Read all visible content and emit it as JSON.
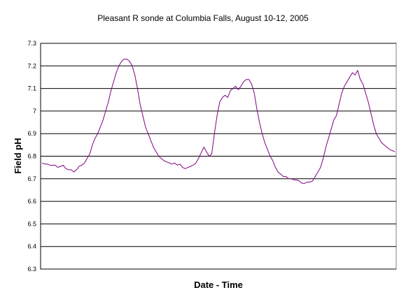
{
  "chart_data": {
    "type": "line",
    "title": "Pleasant R sonde at Columbia Falls, August 10-12, 2005",
    "xlabel": "Date - Time",
    "ylabel": "Field pH",
    "ylim": [
      6.3,
      7.3
    ],
    "yticks": [
      "6.3",
      "6.4",
      "6.5",
      "6.6",
      "6.7",
      "6.8",
      "6.9",
      "7",
      "7.1",
      "7.2",
      "7.3"
    ],
    "x_tick_labels_shown": false,
    "grid": {
      "horizontal": true,
      "vertical": false
    },
    "colors": {
      "series": "#800080",
      "grid": "#000000",
      "plot_background": "#ffffff"
    },
    "series": [
      {
        "values": [
          6.77,
          6.765,
          6.765,
          6.76,
          6.76,
          6.76,
          6.75,
          6.755,
          6.76,
          6.745,
          6.74,
          6.74,
          6.73,
          6.74,
          6.755,
          6.76,
          6.77,
          6.79,
          6.81,
          6.85,
          6.88,
          6.9,
          6.93,
          6.96,
          7.0,
          7.04,
          7.09,
          7.13,
          7.17,
          7.2,
          7.22,
          7.23,
          7.23,
          7.22,
          7.2,
          7.16,
          7.1,
          7.03,
          6.98,
          6.93,
          6.9,
          6.87,
          6.84,
          6.82,
          6.8,
          6.79,
          6.78,
          6.775,
          6.77,
          6.765,
          6.77,
          6.76,
          6.765,
          6.75,
          6.745,
          6.75,
          6.755,
          6.76,
          6.77,
          6.79,
          6.815,
          6.84,
          6.82,
          6.8,
          6.81,
          6.9,
          6.98,
          7.04,
          7.06,
          7.07,
          7.06,
          7.09,
          7.1,
          7.11,
          7.095,
          7.11,
          7.13,
          7.14,
          7.14,
          7.12,
          7.08,
          7.01,
          6.95,
          6.9,
          6.86,
          6.83,
          6.8,
          6.78,
          6.75,
          6.73,
          6.72,
          6.71,
          6.71,
          6.7,
          6.7,
          6.695,
          6.695,
          6.69,
          6.68,
          6.68,
          6.685,
          6.685,
          6.69,
          6.71,
          6.73,
          6.75,
          6.79,
          6.84,
          6.88,
          6.92,
          6.96,
          6.98,
          7.03,
          7.08,
          7.11,
          7.13,
          7.15,
          7.17,
          7.16,
          7.18,
          7.14,
          7.12,
          7.08,
          7.04,
          6.99,
          6.94,
          6.9,
          6.88,
          6.86,
          6.85,
          6.84,
          6.83,
          6.825,
          6.82
        ]
      }
    ]
  }
}
